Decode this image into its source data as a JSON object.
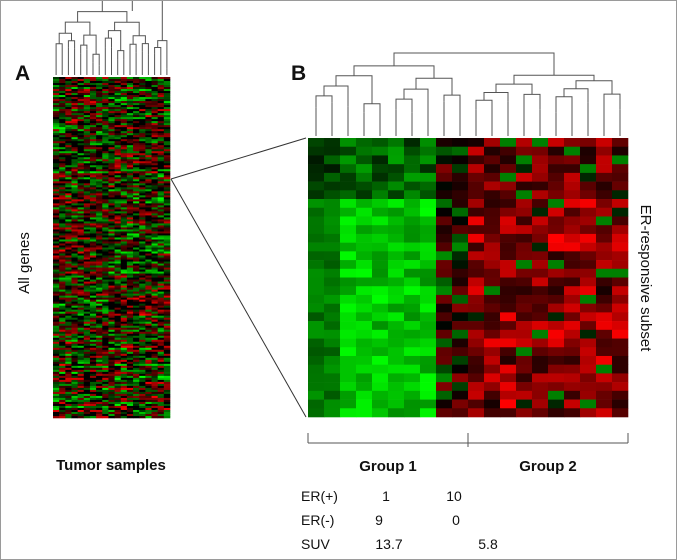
{
  "panel_a": {
    "label": "A",
    "y_label": "All genes",
    "x_label": "Tumor samples"
  },
  "panel_b": {
    "label": "B",
    "y_label": "ER-responsive subset",
    "groups": [
      "Group 1",
      "Group 2"
    ]
  },
  "summary_table": {
    "rows": [
      {
        "label": "ER(+)",
        "group1": "1",
        "group2": "10"
      },
      {
        "label": "ER(-)",
        "group1": "9",
        "group2": "0"
      },
      {
        "label": "SUV",
        "group1": "13.7",
        "group2": "5.8"
      }
    ]
  },
  "colors": {
    "high": "#ff0000",
    "low": "#00ff00",
    "neutral": "#000000"
  }
}
